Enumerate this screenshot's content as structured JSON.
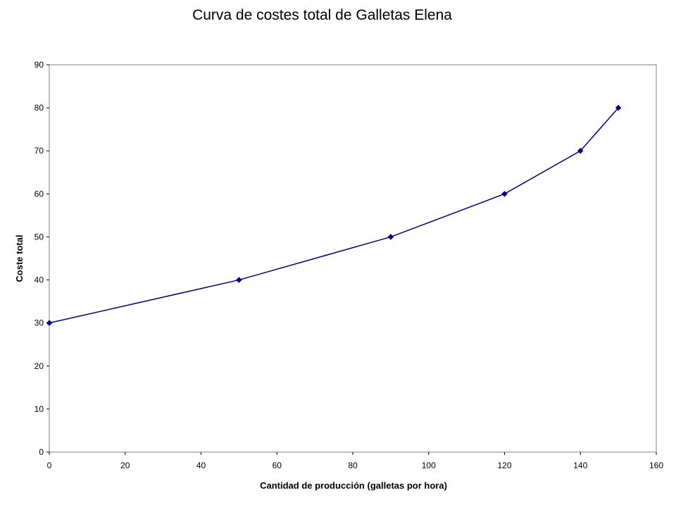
{
  "chart_data": {
    "type": "line",
    "title": "Curva de costes total de Galletas Elena",
    "xlabel": "Cantidad de producción (galletas por hora)",
    "ylabel": "Coste total",
    "xlim": [
      0,
      160
    ],
    "ylim": [
      0,
      90
    ],
    "xticks": [
      0,
      20,
      40,
      60,
      80,
      100,
      120,
      140,
      160
    ],
    "yticks": [
      0,
      10,
      20,
      30,
      40,
      50,
      60,
      70,
      80,
      90
    ],
    "grid": false,
    "legend": "none",
    "series": [
      {
        "x": [
          0,
          50,
          90,
          120,
          140,
          150
        ],
        "y": [
          30,
          40,
          50,
          60,
          70,
          80
        ],
        "color": "#000080",
        "marker": "diamond"
      }
    ]
  }
}
